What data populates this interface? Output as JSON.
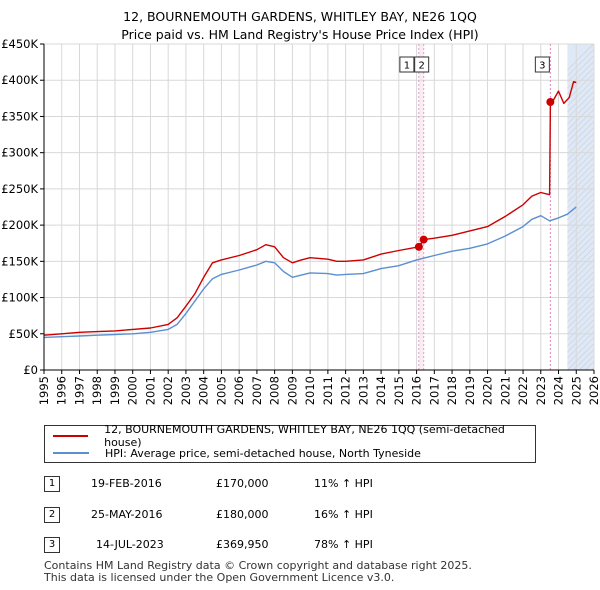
{
  "title_line1": "12, BOURNEMOUTH GARDENS, WHITLEY BAY, NE26 1QQ",
  "title_line2": "Price paid vs. HM Land Registry's House Price Index (HPI)",
  "legend": {
    "property": "12, BOURNEMOUTH GARDENS, WHITLEY BAY, NE26 1QQ (semi-detached house)",
    "hpi": "HPI: Average price, semi-detached house, North Tyneside"
  },
  "colors": {
    "property": "#cc0000",
    "hpi": "#5b8fd0",
    "marker_line": "#e087c0",
    "shade": "#dfe8f6",
    "grid": "#d8d8d8"
  },
  "transactions": [
    {
      "num": "1",
      "date": "19-FEB-2016",
      "price": "£170,000",
      "hpi": "11% ↑ HPI"
    },
    {
      "num": "2",
      "date": "25-MAY-2016",
      "price": "£180,000",
      "hpi": "16% ↑ HPI"
    },
    {
      "num": "3",
      "date": "14-JUL-2023",
      "price": "£369,950",
      "hpi": "78% ↑ HPI"
    }
  ],
  "footer_line1": "Contains HM Land Registry data © Crown copyright and database right 2025.",
  "footer_line2": "This data is licensed under the Open Government Licence v3.0.",
  "chart_data": {
    "type": "line",
    "xlim": [
      1995,
      2026
    ],
    "ylim": [
      0,
      450000
    ],
    "x_ticks": [
      1995,
      1996,
      1997,
      1998,
      1999,
      2000,
      2001,
      2002,
      2003,
      2004,
      2005,
      2006,
      2007,
      2008,
      2009,
      2010,
      2011,
      2012,
      2013,
      2014,
      2015,
      2016,
      2017,
      2018,
      2019,
      2020,
      2021,
      2022,
      2023,
      2024,
      2025,
      2026
    ],
    "y_ticks": [
      0,
      50000,
      100000,
      150000,
      200000,
      250000,
      300000,
      350000,
      400000,
      450000
    ],
    "y_tick_labels": [
      "£0",
      "£50K",
      "£100K",
      "£150K",
      "£200K",
      "£250K",
      "£300K",
      "£350K",
      "£400K",
      "£450K"
    ],
    "shaded_future_from": 2024.5,
    "sale_markers": [
      {
        "label": "1",
        "x": 2016.13,
        "y": 170000
      },
      {
        "label": "2",
        "x": 2016.4,
        "y": 180000
      },
      {
        "label": "3",
        "x": 2023.54,
        "y": 369950
      }
    ],
    "series": [
      {
        "name": "12, BOURNEMOUTH GARDENS, WHITLEY BAY, NE26 1QQ (semi-detached house)",
        "x": [
          1995,
          1996,
          1997,
          1998,
          1999,
          2000,
          2001,
          2002,
          2002.5,
          2003,
          2003.5,
          2004,
          2004.5,
          2005,
          2006,
          2007,
          2007.5,
          2008,
          2008.5,
          2009,
          2009.5,
          2010,
          2011,
          2011.5,
          2012,
          2013,
          2014,
          2015,
          2016.13,
          2016.4,
          2017,
          2018,
          2019,
          2020,
          2021,
          2022,
          2022.5,
          2023,
          2023.5,
          2023.54,
          2023.7,
          2024,
          2024.3,
          2024.6,
          2024.85,
          2025
        ],
        "values": [
          48000,
          50000,
          52000,
          53000,
          54000,
          56000,
          58000,
          63000,
          72000,
          88000,
          105000,
          128000,
          148000,
          152000,
          158000,
          166000,
          173000,
          170000,
          155000,
          148000,
          152000,
          155000,
          153000,
          150000,
          150000,
          152000,
          160000,
          165000,
          170000,
          180000,
          182000,
          186000,
          192000,
          198000,
          212000,
          228000,
          240000,
          245000,
          242000,
          369950,
          372000,
          385000,
          368000,
          376000,
          398000,
          397000
        ]
      },
      {
        "name": "HPI: Average price, semi-detached house, North Tyneside",
        "x": [
          1995,
          1996,
          1997,
          1998,
          1999,
          2000,
          2001,
          2002,
          2002.5,
          2003,
          2003.5,
          2004,
          2004.5,
          2005,
          2006,
          2007,
          2007.5,
          2008,
          2008.5,
          2009,
          2009.5,
          2010,
          2011,
          2011.5,
          2012,
          2013,
          2014,
          2015,
          2016,
          2016.5,
          2017,
          2018,
          2019,
          2020,
          2021,
          2022,
          2022.5,
          2023,
          2023.5,
          2024,
          2024.5,
          2025
        ],
        "values": [
          45000,
          46000,
          47000,
          48000,
          49000,
          50000,
          52000,
          56000,
          63000,
          78000,
          95000,
          112000,
          126000,
          132000,
          138000,
          145000,
          150000,
          148000,
          136000,
          128000,
          131000,
          134000,
          133000,
          131000,
          132000,
          133000,
          140000,
          144000,
          152000,
          155000,
          158000,
          164000,
          168000,
          174000,
          185000,
          198000,
          208000,
          213000,
          206000,
          210000,
          215000,
          225000
        ]
      }
    ]
  }
}
